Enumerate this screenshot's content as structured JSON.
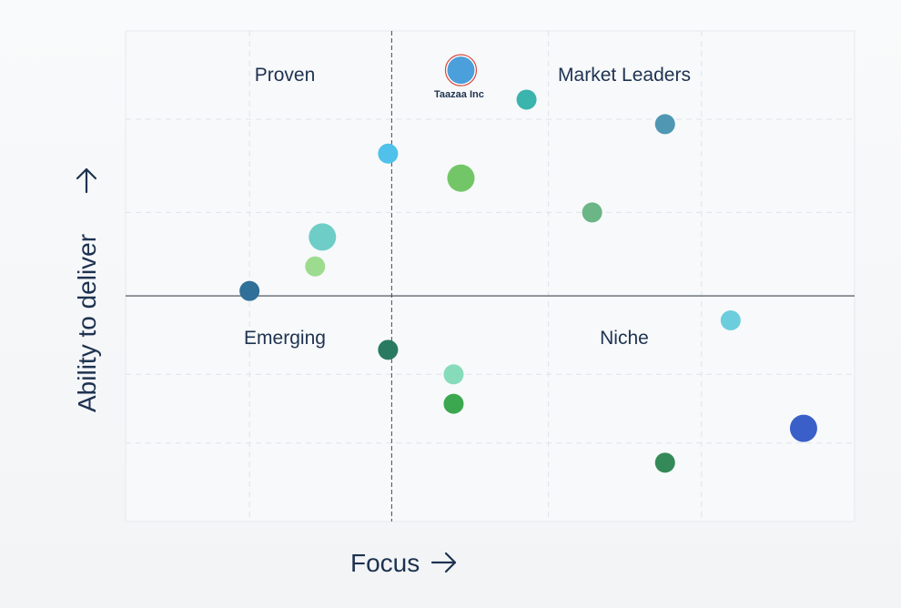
{
  "chart_data": {
    "type": "scatter",
    "title": "",
    "xlabel": "Focus",
    "ylabel": "Ability to deliver",
    "xlim": [
      0,
      100
    ],
    "ylim": [
      0,
      100
    ],
    "x_divider": 36.5,
    "y_divider": 46,
    "grid": true,
    "quadrants": {
      "top_left": "Proven",
      "top_right": "Market Leaders",
      "bottom_left": "Emerging",
      "bottom_right": "Niche"
    },
    "points": [
      {
        "x": 46,
        "y": 92,
        "size": 3,
        "color": "#4b9fdb",
        "label": "Taazaa Inc",
        "highlight": true
      },
      {
        "x": 55,
        "y": 86,
        "size": 2,
        "color": "#3ab4ad"
      },
      {
        "x": 74,
        "y": 81,
        "size": 2,
        "color": "#4f97b3"
      },
      {
        "x": 36,
        "y": 75,
        "size": 2,
        "color": "#4fc1ea"
      },
      {
        "x": 46,
        "y": 70,
        "size": 3,
        "color": "#72c667"
      },
      {
        "x": 64,
        "y": 63,
        "size": 2,
        "color": "#6bb586"
      },
      {
        "x": 27,
        "y": 58,
        "size": 3,
        "color": "#6fcdc8"
      },
      {
        "x": 26,
        "y": 52,
        "size": 2,
        "color": "#9ddc8f"
      },
      {
        "x": 17,
        "y": 47,
        "size": 2,
        "color": "#2f6f98"
      },
      {
        "x": 83,
        "y": 41,
        "size": 2,
        "color": "#6ccddd"
      },
      {
        "x": 36,
        "y": 35,
        "size": 2,
        "color": "#2a7a62"
      },
      {
        "x": 45,
        "y": 30,
        "size": 2,
        "color": "#86dbbb"
      },
      {
        "x": 45,
        "y": 24,
        "size": 2,
        "color": "#3ba74f"
      },
      {
        "x": 93,
        "y": 19,
        "size": 3,
        "color": "#3a5fc8"
      },
      {
        "x": 74,
        "y": 12,
        "size": 2,
        "color": "#338a58"
      }
    ]
  },
  "colors": {
    "text": "#1e3250",
    "axis": "#3f4852",
    "grid": "#dfe4ea",
    "highlight_ring": "#d9453a"
  }
}
